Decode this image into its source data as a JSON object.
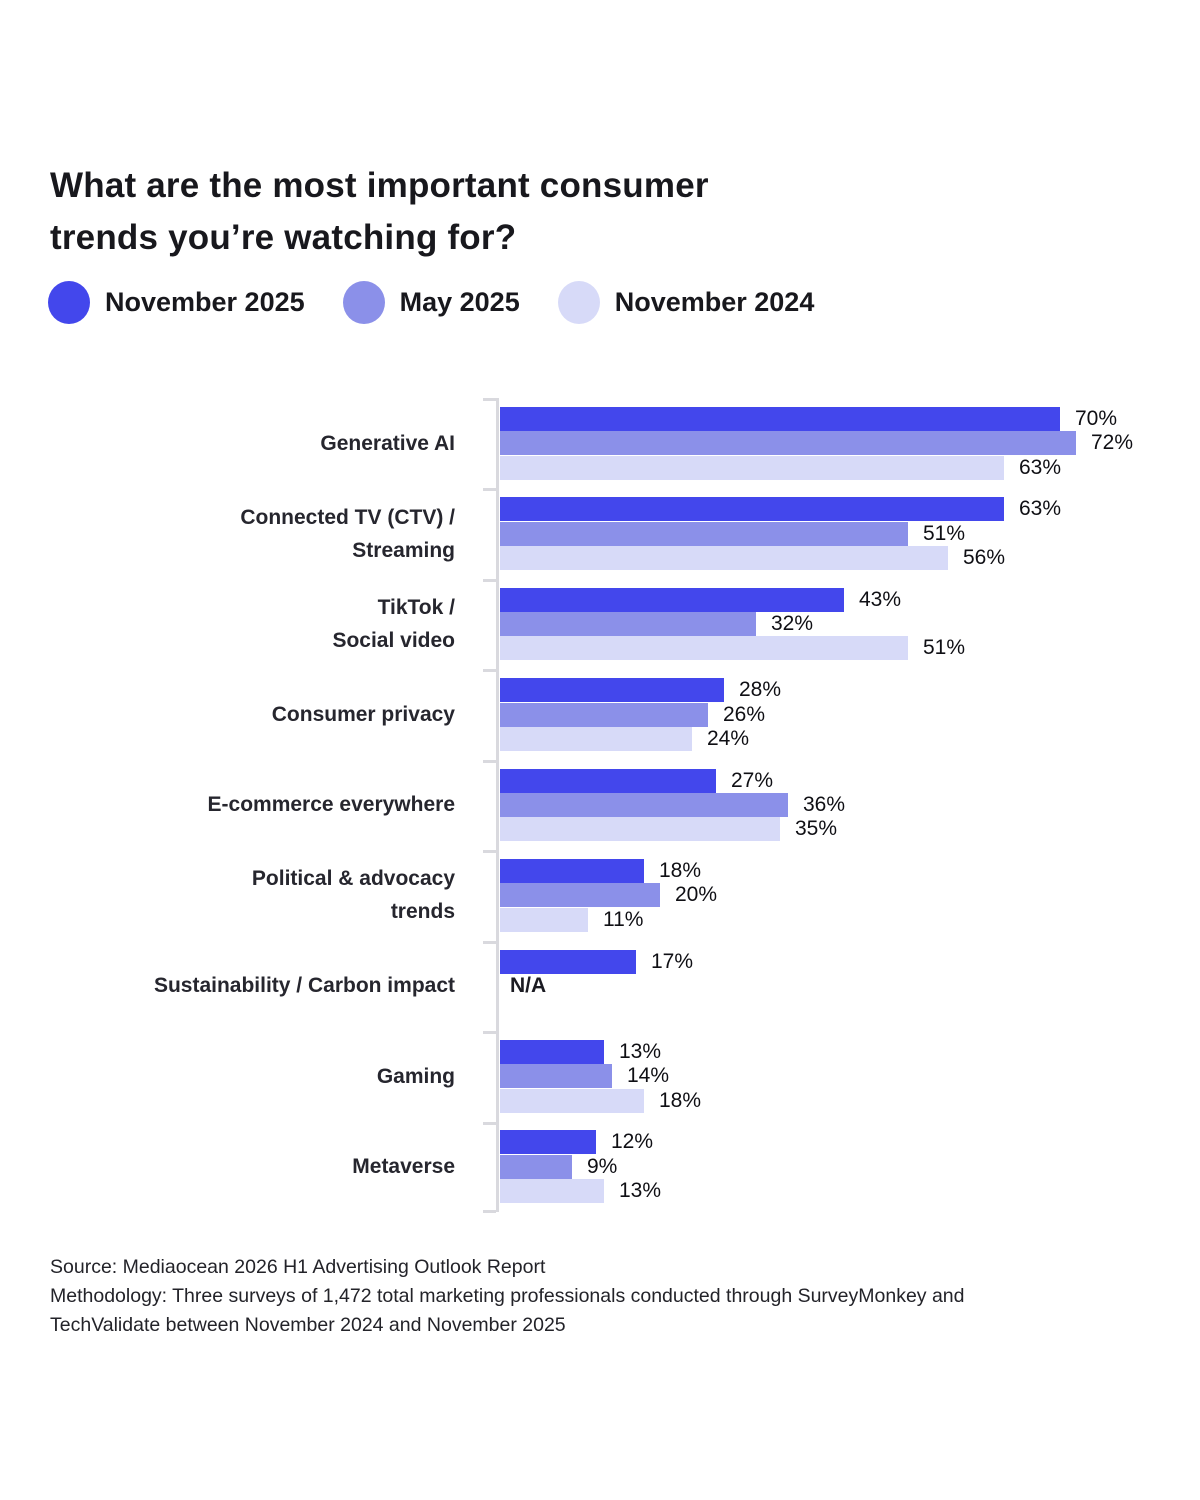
{
  "title_lines": [
    "What are the most important consumer",
    "trends you’re watching for?"
  ],
  "legend": {
    "items": [
      {
        "label": "November 2025",
        "color": "#4347EC"
      },
      {
        "label": "May 2025",
        "color": "#8B90E9"
      },
      {
        "label": "November 2024",
        "color": "#D7DAF8"
      }
    ]
  },
  "chart_data": {
    "type": "bar",
    "orientation": "horizontal",
    "value_suffix": "%",
    "xlim": [
      0,
      82.5
    ],
    "grid": false,
    "legend_position": "top",
    "na_label": "N/A",
    "categories": [
      "Generative AI",
      "Connected TV (CTV) /\nStreaming",
      "TikTok /\nSocial video",
      "Consumer privacy",
      "E-commerce everywhere",
      "Political & advocacy\ntrends",
      "Sustainability / Carbon impact",
      "Gaming",
      "Metaverse"
    ],
    "series": [
      {
        "name": "November 2025",
        "color": "#4347EC",
        "values": [
          70,
          63,
          43,
          28,
          27,
          18,
          17,
          13,
          12
        ]
      },
      {
        "name": "May 2025",
        "color": "#8B90E9",
        "values": [
          72,
          51,
          32,
          26,
          36,
          20,
          null,
          14,
          9
        ]
      },
      {
        "name": "November 2024",
        "color": "#D7DAF8",
        "values": [
          63,
          56,
          51,
          24,
          35,
          11,
          null,
          18,
          13
        ]
      }
    ]
  },
  "footer": {
    "source": "Source: Mediaocean 2026 H1 Advertising Outlook Report",
    "methodology": "Methodology: Three surveys of 1,472 total marketing professionals conducted through SurveyMonkey and TechValidate between November 2024 and November 2025"
  }
}
